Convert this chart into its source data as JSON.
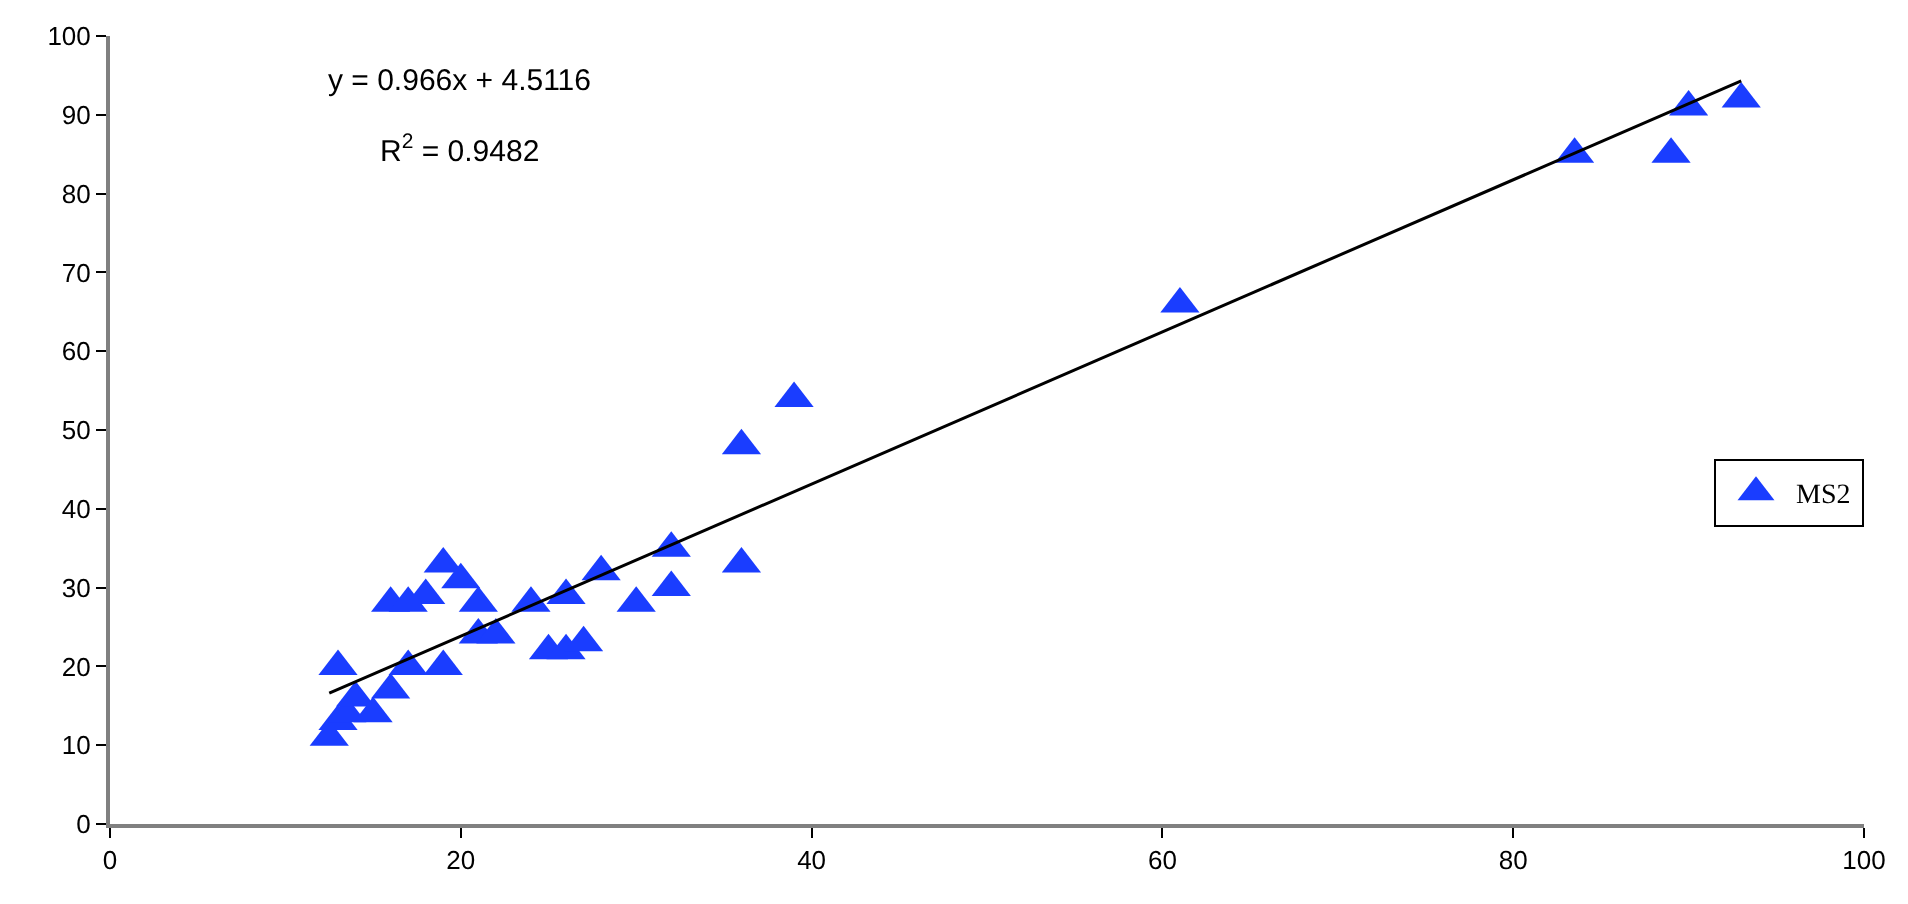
{
  "chart_data": {
    "type": "scatter",
    "xlim": [
      0,
      100
    ],
    "xticks": [
      0,
      20,
      40,
      60,
      80,
      100
    ],
    "ylim": [
      0,
      100
    ],
    "yticks": [
      0,
      10,
      20,
      30,
      40,
      50,
      60,
      70,
      80,
      90,
      100
    ],
    "legend": "right",
    "annotations": [
      "y = 0.966x + 4.5116",
      "R$^{2}$ = 0.9482"
    ],
    "series": [
      {
        "name": "MS2",
        "marker": "triangle",
        "color": "#1a3dff",
        "x": [
          12.5,
          13,
          13.5,
          13,
          14,
          15,
          16,
          16,
          17,
          17,
          18,
          19,
          19,
          20,
          21,
          21,
          22,
          24,
          25,
          26,
          26,
          27,
          28,
          30,
          32,
          32,
          36,
          36,
          39,
          61,
          83.5,
          89,
          90,
          93
        ],
        "values": [
          11,
          13,
          14,
          20,
          16,
          14,
          17,
          28,
          28,
          20,
          29,
          20,
          33,
          31,
          24,
          28,
          24,
          28,
          22,
          29,
          22,
          23,
          32,
          28,
          35,
          30,
          33,
          48,
          54,
          66,
          85,
          85,
          91,
          92
        ]
      },
      {
        "type": "line",
        "color": "#000000",
        "line_style": "solid",
        "x": [
          12.5,
          93
        ],
        "values": [
          16.6,
          94.3
        ]
      }
    ]
  }
}
